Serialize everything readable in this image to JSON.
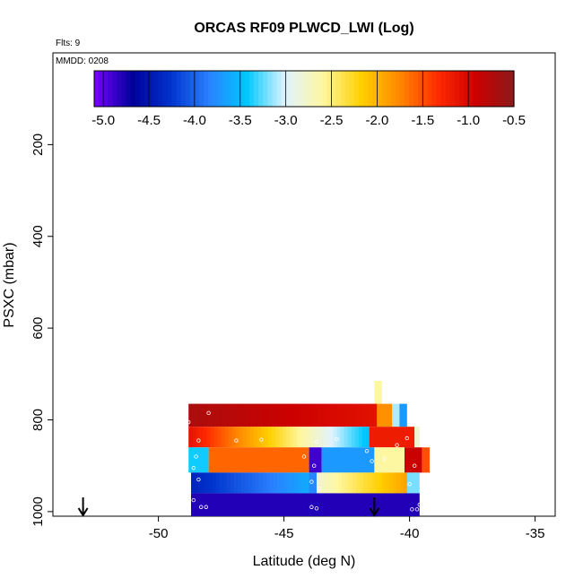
{
  "chart_data": {
    "type": "heatmap",
    "title": "ORCAS RF09 PLWCD_LWI (Log)",
    "flts_label": "Flts: 9",
    "mmdd_label": "MMDD: 0208",
    "xlabel": "Latitude (deg N)",
    "ylabel": "PSXC (mbar)",
    "xlim": [
      -54.2,
      -34.2
    ],
    "ylim": [
      1010,
      0
    ],
    "y_reversed": true,
    "grid": false,
    "x_ticks": [
      -50,
      -45,
      -40,
      -35
    ],
    "x_tick_labels": [
      "-50",
      "-45",
      "-40",
      "-35"
    ],
    "y_ticks": [
      200,
      400,
      600,
      800,
      1000
    ],
    "y_tick_labels": [
      "200",
      "400",
      "600",
      "800",
      "1000"
    ],
    "colorbar": {
      "placement": "top",
      "range": [
        -5.1,
        -0.5
      ],
      "ticks": [
        -5.0,
        -4.5,
        -4.0,
        -3.5,
        -3.0,
        -2.5,
        -2.0,
        -1.5,
        -1.0,
        -0.5
      ],
      "tick_labels": [
        "-5.0",
        "-4.5",
        "-4.0",
        "-3.5",
        "-3.0",
        "-2.5",
        "-2.0",
        "-1.5",
        "-1.0",
        "-0.5"
      ],
      "colors": [
        "#7a00ff",
        "#00009a",
        "#0033cc",
        "#2a80ff",
        "#00c8ff",
        "#dff3ff",
        "#fff7a0",
        "#ffd000",
        "#ff8800",
        "#ff2a00",
        "#cc0000",
        "#8b1a1a"
      ]
    },
    "layers": [
      {
        "p_top": 715,
        "p_bottom": 765,
        "segments": [
          {
            "lat_start": -41.4,
            "lat_end": -41.1,
            "value": -2.6
          }
        ]
      },
      {
        "p_top": 765,
        "p_bottom": 815,
        "segments": [
          {
            "lat_start": -48.8,
            "lat_end": -41.3,
            "value": -0.7,
            "value_end": -1.1
          },
          {
            "lat_start": -41.3,
            "lat_end": -40.7,
            "value": -1.8
          },
          {
            "lat_start": -40.7,
            "lat_end": -40.4,
            "value": -3.1
          },
          {
            "lat_start": -40.4,
            "lat_end": -40.1,
            "value": -3.7
          }
        ]
      },
      {
        "p_top": 815,
        "p_bottom": 860,
        "segments": [
          {
            "lat_start": -48.8,
            "lat_end": -41.6,
            "value": -1.1,
            "value_end": -3.5
          },
          {
            "lat_start": -41.6,
            "lat_end": -39.8,
            "value": -1.2
          },
          {
            "lat_start": -39.8,
            "lat_end": -39.6,
            "value": -2.8
          }
        ]
      },
      {
        "p_top": 860,
        "p_bottom": 915,
        "segments": [
          {
            "lat_start": -48.8,
            "lat_end": -48.0,
            "value": -3.4
          },
          {
            "lat_start": -48.0,
            "lat_end": -44.0,
            "value": -1.6
          },
          {
            "lat_start": -44.0,
            "lat_end": -43.5,
            "value": -4.9
          },
          {
            "lat_start": -43.5,
            "lat_end": -41.4,
            "value": -3.7
          },
          {
            "lat_start": -41.4,
            "lat_end": -40.2,
            "value": -2.6
          },
          {
            "lat_start": -40.2,
            "lat_end": -39.5,
            "value": -0.9
          },
          {
            "lat_start": -39.5,
            "lat_end": -39.2,
            "value": -1.5
          }
        ]
      },
      {
        "p_top": 915,
        "p_bottom": 960,
        "segments": [
          {
            "lat_start": -48.7,
            "lat_end": -44.0,
            "value": -4.4,
            "value_end": -3.6
          },
          {
            "lat_start": -44.0,
            "lat_end": -43.7,
            "value": -3.8
          },
          {
            "lat_start": -43.7,
            "lat_end": -40.1,
            "value": -2.8,
            "value_end": -1.9
          },
          {
            "lat_start": -40.1,
            "lat_end": -39.6,
            "value": -3.2
          }
        ]
      },
      {
        "p_top": 960,
        "p_bottom": 1010,
        "segments": [
          {
            "lat_start": -48.7,
            "lat_end": -39.6,
            "value": -4.8
          }
        ]
      }
    ],
    "sample_points": [
      {
        "lat": -48.8,
        "p": 805
      },
      {
        "lat": -48.0,
        "p": 785
      },
      {
        "lat": -48.4,
        "p": 845
      },
      {
        "lat": -46.9,
        "p": 845
      },
      {
        "lat": -45.9,
        "p": 843
      },
      {
        "lat": -43.7,
        "p": 848
      },
      {
        "lat": -42.9,
        "p": 842
      },
      {
        "lat": -41.7,
        "p": 868
      },
      {
        "lat": -40.5,
        "p": 855
      },
      {
        "lat": -40.1,
        "p": 840
      },
      {
        "lat": -48.5,
        "p": 880
      },
      {
        "lat": -48.6,
        "p": 905
      },
      {
        "lat": -44.2,
        "p": 880
      },
      {
        "lat": -43.8,
        "p": 900
      },
      {
        "lat": -41.5,
        "p": 890
      },
      {
        "lat": -41.0,
        "p": 885
      },
      {
        "lat": -39.8,
        "p": 900
      },
      {
        "lat": -48.4,
        "p": 930
      },
      {
        "lat": -43.9,
        "p": 935
      },
      {
        "lat": -43.6,
        "p": 950
      },
      {
        "lat": -40.0,
        "p": 940
      },
      {
        "lat": -48.6,
        "p": 975
      },
      {
        "lat": -48.3,
        "p": 990
      },
      {
        "lat": -48.1,
        "p": 990
      },
      {
        "lat": -43.9,
        "p": 990
      },
      {
        "lat": -43.7,
        "p": 993
      },
      {
        "lat": -39.9,
        "p": 995
      },
      {
        "lat": -39.7,
        "p": 995
      },
      {
        "lat": -39.6,
        "p": 985
      }
    ],
    "arrows": [
      {
        "lat": -53.0
      },
      {
        "lat": -41.4
      }
    ]
  }
}
